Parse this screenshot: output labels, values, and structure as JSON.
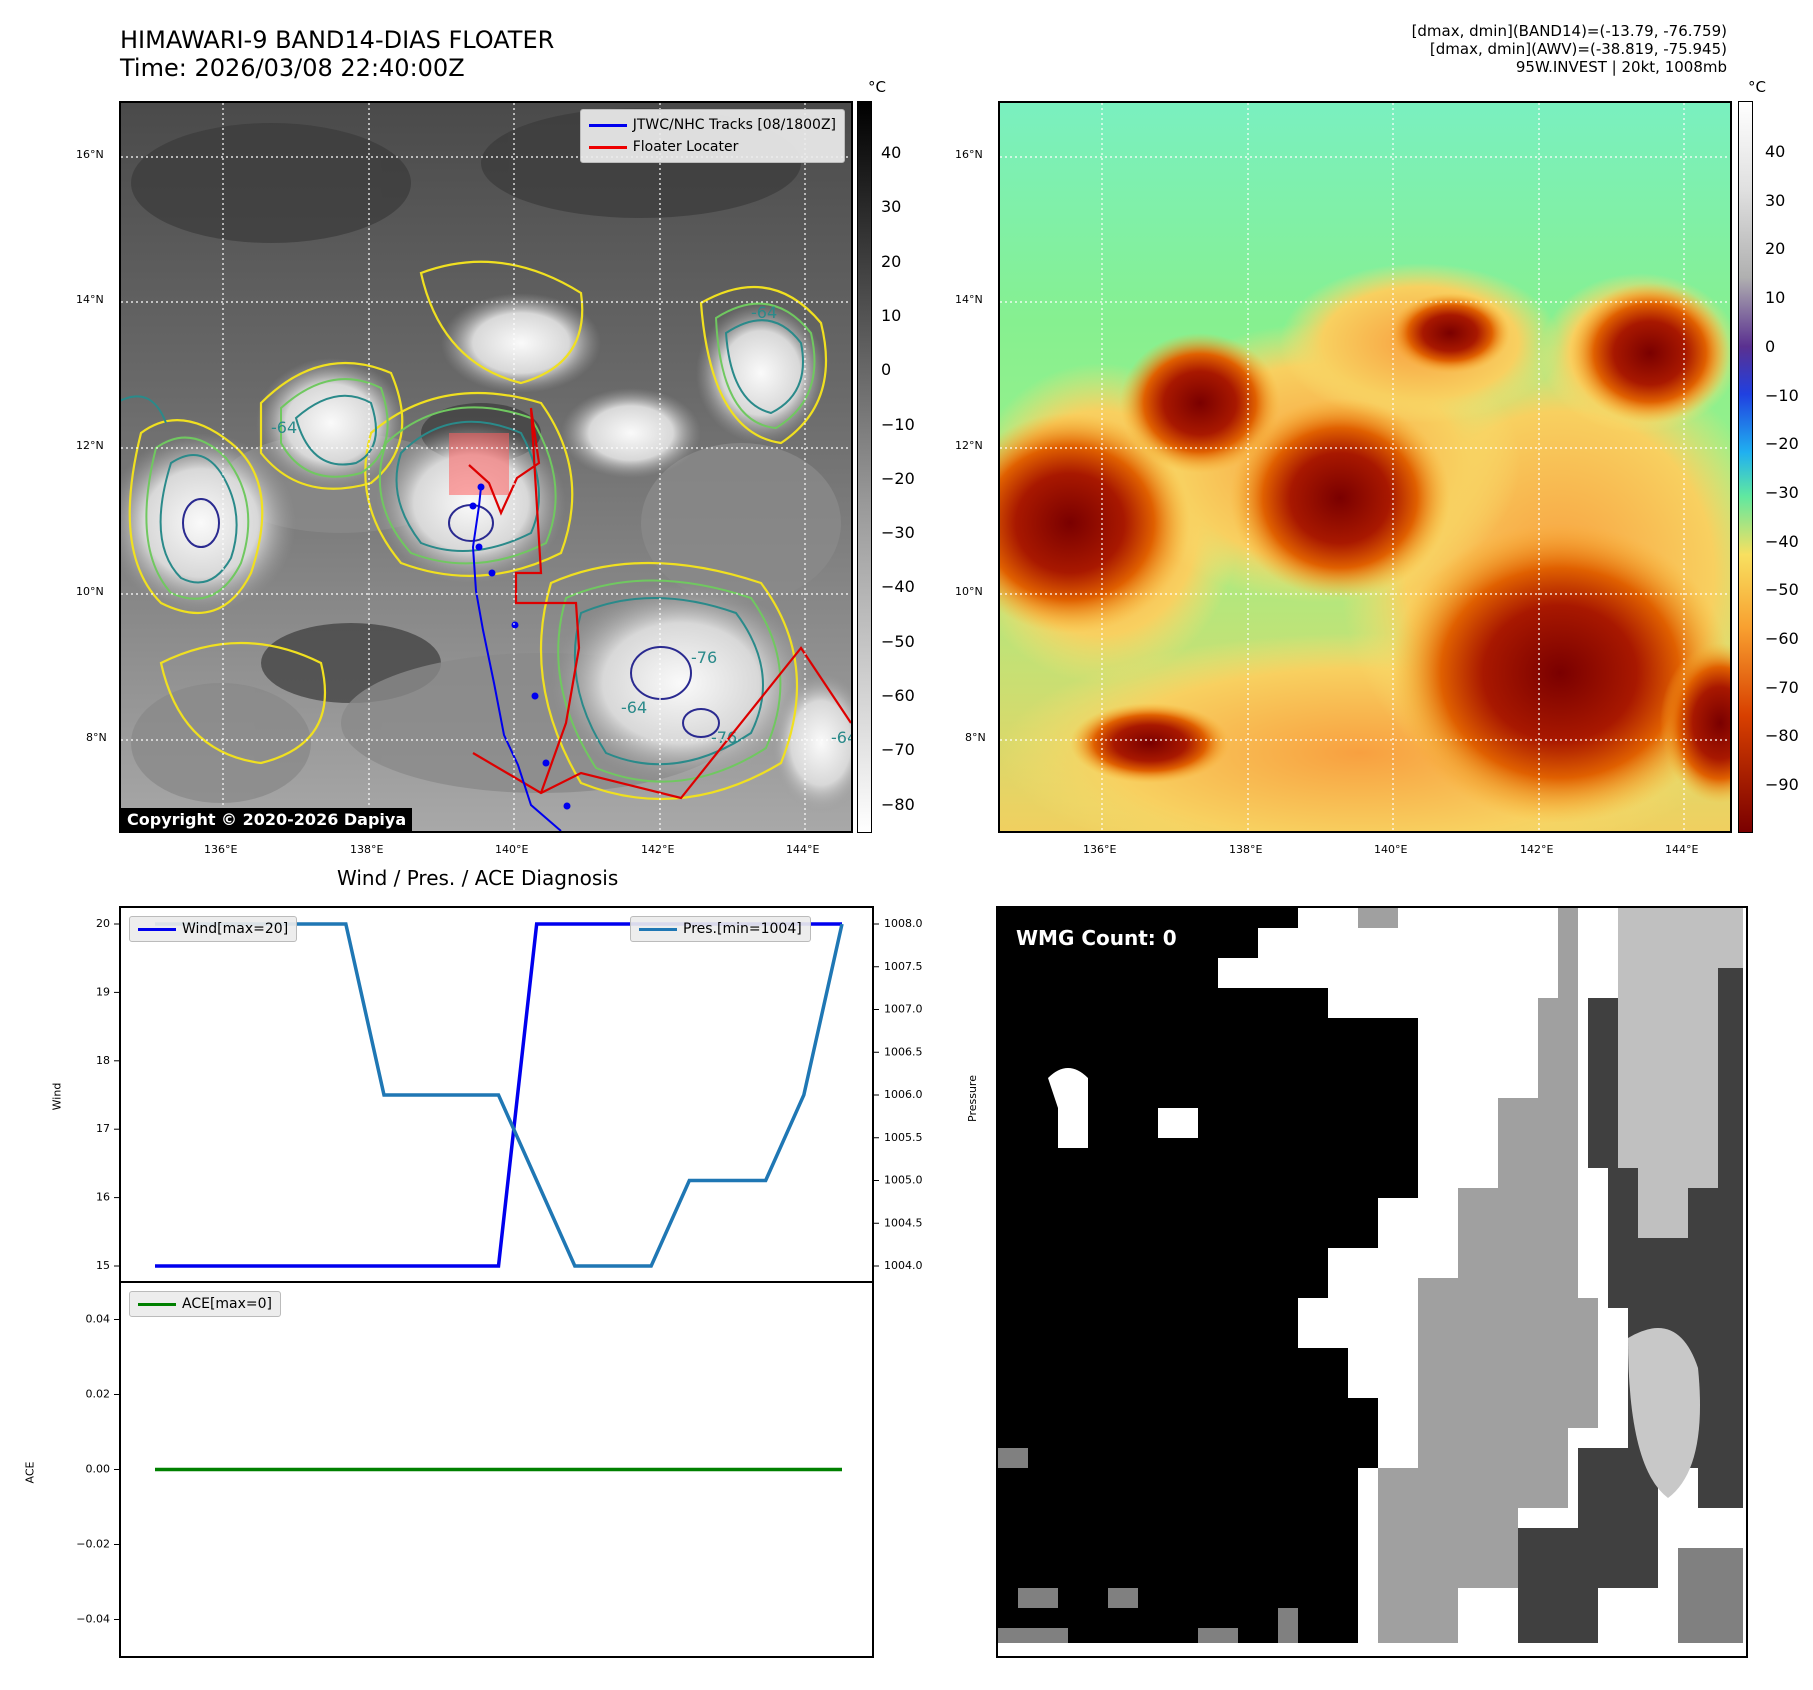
{
  "header": {
    "title_line1": "HIMAWARI-9 BAND14-DIAS FLOATER",
    "title_line2": "Time: 2026/03/08 22:40:00Z",
    "info_line1": "[dmax, dmin](BAND14)=(-13.79, -76.759)",
    "info_line2": "[dmax, dmin](AWV)=(-38.819, -75.945)",
    "info_line3": "95W.INVEST | 20kt, 1008mb"
  },
  "map": {
    "lat_labels": [
      "16°N",
      "14°N",
      "12°N",
      "10°N",
      "8°N"
    ],
    "lon_labels": [
      "136°E",
      "138°E",
      "140°E",
      "142°E",
      "144°E"
    ],
    "legend_tracks": "JTWC/NHC Tracks [08/1800Z]",
    "legend_floater": "Floater Locater",
    "copyright": "Copyright © 2020-2026 Dapiya",
    "unit": "°C",
    "colorbar_left_ticks": [
      "40",
      "30",
      "20",
      "10",
      "0",
      "−10",
      "−20",
      "−30",
      "−40",
      "−50",
      "−60",
      "−70",
      "−80"
    ],
    "colorbar_right_ticks": [
      "40",
      "30",
      "20",
      "10",
      "0",
      "−10",
      "−20",
      "−30",
      "−40",
      "−50",
      "−60",
      "−70",
      "−80",
      "−90"
    ],
    "contour_labels": [
      "-64",
      "-76",
      "-64",
      "-76",
      "-64",
      "-64"
    ],
    "colors": {
      "track": "#0000ee",
      "floater": "#ee0000",
      "contour_yellow": "#f0e020",
      "contour_green": "#70c860",
      "contour_teal": "#2a8a8a",
      "contour_navy": "#2a2a90"
    }
  },
  "diagnosis": {
    "title": "Wind / Pres. / ACE Diagnosis",
    "wind_axis_label": "Wind",
    "pressure_axis_label": "Pressure",
    "ace_axis_label": "ACE",
    "wind_legend": "Wind[max=20]",
    "pressure_legend": "Pres.[min=1004]",
    "ace_legend": "ACE[max=0]"
  },
  "wmg": {
    "label": "WMG Count: 0"
  },
  "chart_data": [
    {
      "type": "line",
      "title": "Wind / Pres. / ACE Diagnosis",
      "x": [
        0,
        1,
        2,
        3,
        4,
        5,
        6,
        7,
        8,
        9,
        10,
        11,
        12,
        13,
        14,
        15,
        16,
        17,
        18
      ],
      "series": [
        {
          "name": "Wind[max=20]",
          "axis": "left",
          "color": "#0000ee",
          "values": [
            15,
            15,
            15,
            15,
            15,
            15,
            15,
            15,
            15,
            15,
            20,
            20,
            20,
            20,
            20,
            20,
            20,
            20,
            20
          ]
        },
        {
          "name": "Pres.[min=1004]",
          "axis": "right",
          "color": "#1f77b4",
          "values": [
            1008,
            1008,
            1008,
            1008,
            1008,
            1008,
            1006,
            1006,
            1006,
            1006,
            1005,
            1004,
            1004,
            1004,
            1005,
            1005,
            1005,
            1006,
            1008
          ]
        }
      ],
      "ylabel": "Wind",
      "ylim": [
        15,
        20
      ],
      "yticks": [
        "15",
        "16",
        "17",
        "18",
        "19",
        "20"
      ],
      "y2label": "Pressure",
      "y2lim": [
        1004,
        1008
      ],
      "y2ticks": [
        "1004.0",
        "1004.5",
        "1005.0",
        "1005.5",
        "1006.0",
        "1006.5",
        "1007.0",
        "1007.5",
        "1008.0"
      ]
    },
    {
      "type": "line",
      "x": [
        0,
        1,
        2,
        3,
        4,
        5,
        6,
        7,
        8,
        9,
        10,
        11,
        12,
        13,
        14,
        15,
        16,
        17,
        18
      ],
      "series": [
        {
          "name": "ACE[max=0]",
          "color": "#008000",
          "values": [
            0,
            0,
            0,
            0,
            0,
            0,
            0,
            0,
            0,
            0,
            0,
            0,
            0,
            0,
            0,
            0,
            0,
            0,
            0
          ]
        }
      ],
      "ylabel": "ACE",
      "ylim": [
        -0.05,
        0.05
      ],
      "yticks": [
        "0.04",
        "0.02",
        "0.00",
        "−0.02",
        "−0.04"
      ]
    }
  ]
}
